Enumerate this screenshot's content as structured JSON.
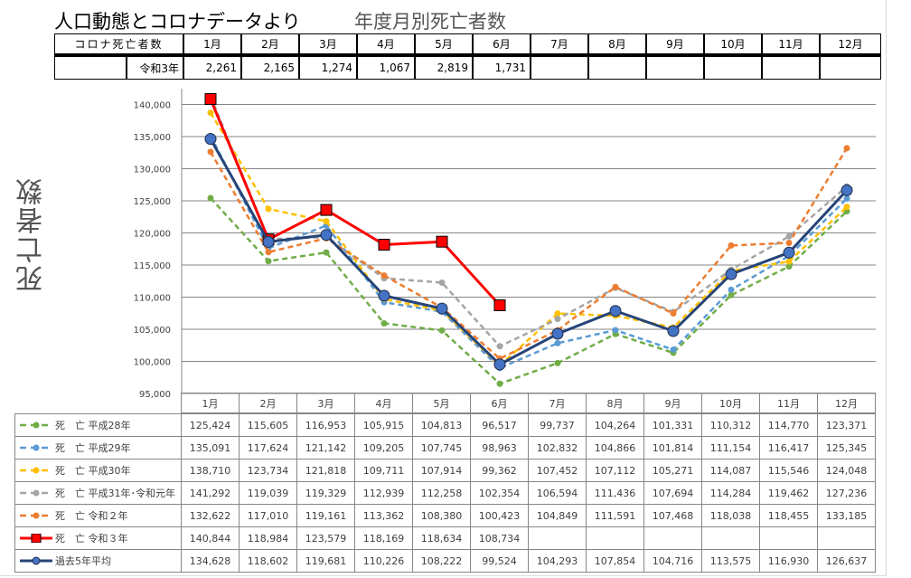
{
  "header": {
    "title": "人口動態とコロナデータより",
    "subtitle": "年度月別死亡者数"
  },
  "covid_table": {
    "label": "コロナ死亡者数",
    "months": [
      "1月",
      "2月",
      "3月",
      "4月",
      "5月",
      "6月",
      "7月",
      "8月",
      "9月",
      "10月",
      "11月",
      "12月"
    ],
    "row_label": "令和3年",
    "values": [
      "2,261",
      "2,165",
      "1,274",
      "1,067",
      "2,819",
      "1,731",
      "",
      "",
      "",
      "",
      "",
      ""
    ]
  },
  "chart_data": {
    "type": "line",
    "title": "",
    "ylabel": "死亡者数",
    "ylim": [
      95000,
      140000
    ],
    "yticks": [
      "95,000",
      "100,000",
      "105,000",
      "110,000",
      "115,000",
      "120,000",
      "125,000",
      "130,000",
      "135,000",
      "140,000"
    ],
    "categories": [
      "1月",
      "2月",
      "3月",
      "4月",
      "5月",
      "6月",
      "7月",
      "8月",
      "9月",
      "10月",
      "11月",
      "12月"
    ],
    "grid": true,
    "legend": "data-table",
    "series": [
      {
        "name": "死　亡 平成28年",
        "color": "#70ad47",
        "style": "dashed",
        "marker": "circle",
        "values": [
          125424,
          115605,
          116953,
          105915,
          104813,
          96517,
          99737,
          104264,
          101331,
          110312,
          114770,
          123371
        ],
        "labels": [
          "125,424",
          "115,605",
          "116,953",
          "105,915",
          "104,813",
          "96,517",
          "99,737",
          "104,264",
          "101,331",
          "110,312",
          "114,770",
          "123,371"
        ]
      },
      {
        "name": "死　亡 平成29年",
        "color": "#5b9bd5",
        "style": "dashed",
        "marker": "circle",
        "values": [
          135091,
          117624,
          121142,
          109205,
          107745,
          98963,
          102832,
          104866,
          101814,
          111154,
          116417,
          125345
        ],
        "labels": [
          "135,091",
          "117,624",
          "121,142",
          "109,205",
          "107,745",
          "98,963",
          "102,832",
          "104,866",
          "101,814",
          "111,154",
          "116,417",
          "125,345"
        ]
      },
      {
        "name": "死　亡 平成30年",
        "color": "#ffc000",
        "style": "dashed",
        "marker": "circle",
        "values": [
          138710,
          123734,
          121818,
          109711,
          107914,
          99362,
          107452,
          107112,
          105271,
          114087,
          115546,
          124048
        ],
        "labels": [
          "138,710",
          "123,734",
          "121,818",
          "109,711",
          "107,914",
          "99,362",
          "107,452",
          "107,112",
          "105,271",
          "114,087",
          "115,546",
          "124,048"
        ]
      },
      {
        "name": "死　亡 平成31年･令和元年",
        "color": "#a5a5a5",
        "style": "dashed",
        "marker": "circle",
        "values": [
          141292,
          119039,
          119329,
          112939,
          112258,
          102354,
          106594,
          111436,
          107694,
          114284,
          119462,
          127236
        ],
        "labels": [
          "141,292",
          "119,039",
          "119,329",
          "112,939",
          "112,258",
          "102,354",
          "106,594",
          "111,436",
          "107,694",
          "114,284",
          "119,462",
          "127,236"
        ]
      },
      {
        "name": "死　亡 令和２年",
        "color": "#ed7d31",
        "style": "dashed",
        "marker": "circle",
        "values": [
          132622,
          117010,
          119161,
          113362,
          108380,
          100423,
          104849,
          111591,
          107468,
          118038,
          118455,
          133185
        ],
        "labels": [
          "132,622",
          "117,010",
          "119,161",
          "113,362",
          "108,380",
          "100,423",
          "104,849",
          "111,591",
          "107,468",
          "118,038",
          "118,455",
          "133,185"
        ]
      },
      {
        "name": "死　亡 令和３年",
        "color": "#ff0000",
        "style": "solid",
        "marker": "square",
        "values": [
          140844,
          118984,
          123579,
          118169,
          118634,
          108734,
          null,
          null,
          null,
          null,
          null,
          null
        ],
        "labels": [
          "140,844",
          "118,984",
          "123,579",
          "118,169",
          "118,634",
          "108,734",
          "",
          "",
          "",
          "",
          "",
          ""
        ]
      },
      {
        "name": "過去5年平均",
        "color": "#264478",
        "marker_color": "#4472c4",
        "style": "solid",
        "marker": "bigcircle",
        "values": [
          134628,
          118602,
          119681,
          110226,
          108222,
          99524,
          104293,
          107854,
          104716,
          113575,
          116930,
          126637
        ],
        "labels": [
          "134,628",
          "118,602",
          "119,681",
          "110,226",
          "108,222",
          "99,524",
          "104,293",
          "107,854",
          "104,716",
          "113,575",
          "116,930",
          "126,637"
        ]
      }
    ]
  }
}
